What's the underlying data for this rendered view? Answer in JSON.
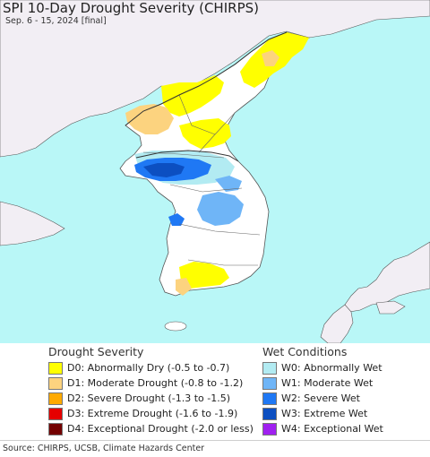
{
  "header": {
    "title": "SPI 10-Day Drought Severity (CHIRPS)",
    "subtitle": "Sep. 6 - 15, 2024 [final]"
  },
  "map": {
    "colors": {
      "ocean": "#b9f7f7",
      "land": "#ffffff",
      "neighbor_land": "#f2eef4",
      "border": "#555555"
    }
  },
  "legend": {
    "drought_title": "Drought Severity",
    "drought_items": [
      {
        "label": "D0: Abnormally Dry (-0.5 to -0.7)",
        "color": "#ffff00"
      },
      {
        "label": "D1: Moderate Drought (-0.8 to -1.2)",
        "color": "#fcd37f"
      },
      {
        "label": "D2: Severe Drought (-1.3 to -1.5)",
        "color": "#ffaa00"
      },
      {
        "label": "D3: Extreme Drought (-1.6 to -1.9)",
        "color": "#e60000"
      },
      {
        "label": "D4: Exceptional Drought (-2.0 or less)",
        "color": "#730000"
      }
    ],
    "wet_title": "Wet Conditions",
    "wet_items": [
      {
        "label": "W0: Abnormally Wet",
        "color": "#b2ebf2"
      },
      {
        "label": "W1: Moderate Wet",
        "color": "#6fb5f7"
      },
      {
        "label": "W2: Severe Wet",
        "color": "#1f78f4"
      },
      {
        "label": "W3: Extreme Wet",
        "color": "#0c4fc1"
      },
      {
        "label": "W4: Exceptional Wet",
        "color": "#a020f0"
      }
    ]
  },
  "footer": {
    "source": "Source: CHIRPS, UCSB, Climate Hazards Center"
  }
}
